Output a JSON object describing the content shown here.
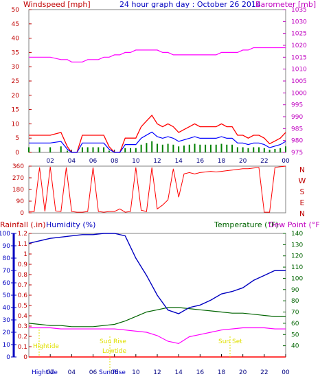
{
  "title": "24 hour graph day : October 26 2014",
  "colors": {
    "wind": "#ff0000",
    "gust": "#ff0000",
    "avg": "#0000ff",
    "low": "#008000",
    "baro": "#ff00ff",
    "dir": "#ff0000",
    "rain": "#ff0000",
    "humid": "#0000c0",
    "temp": "#006400",
    "dew": "#ff00ff",
    "blue_axis": "#0000c0",
    "frame": "#808080",
    "gridline": "#c0c0c0",
    "annot": "#e0e000"
  },
  "labels": {
    "windspeed": "Windspeed [mph]",
    "barometer": "Barometer [mb]",
    "rainfall": "Rainfall (.in)",
    "humidity": "Humidity (%)",
    "temperature": "Temperature (°F)",
    "dewpoint": "Dew Point (°F)",
    "high_tide": "Hightide",
    "sun_rise": "Sun Rise",
    "low_tide": "Lowtide",
    "sun_set": "Sun Set",
    "bottom_hightide": "Hightide",
    "bottom_sunrise": "Sun Rise"
  },
  "chart_data": [
    {
      "type": "line",
      "name": "wind-panel",
      "x_ticks": [
        "02",
        "04",
        "06",
        "08",
        "10",
        "12",
        "14",
        "16",
        "18",
        "20",
        "22",
        "00"
      ],
      "left_ticks": [
        "0",
        "5",
        "10",
        "15",
        "20",
        "25",
        "30",
        "35",
        "40",
        "45",
        "50"
      ],
      "right_ticks": [
        "975",
        "980",
        "985",
        "990",
        "995",
        "1000",
        "1005",
        "1010",
        "1015",
        "1020",
        "1025",
        "1030",
        "1035"
      ],
      "ylim": [
        0,
        50
      ],
      "y2lim": [
        975,
        1035
      ],
      "x": [
        0,
        1,
        2,
        3,
        3.6,
        4,
        4.5,
        5,
        5.5,
        6,
        6.5,
        7,
        7.5,
        8,
        8.5,
        9,
        9.5,
        10,
        10.5,
        11,
        11.5,
        12,
        12.5,
        13,
        13.5,
        14,
        14.5,
        15,
        15.5,
        16,
        16.5,
        17,
        17.5,
        18,
        18.5,
        19,
        19.5,
        20,
        20.5,
        21,
        21.5,
        22,
        22.5,
        23,
        23.5,
        24
      ],
      "series": [
        {
          "name": "Windspeed [mph]",
          "values": [
            6,
            6,
            6,
            7,
            2,
            0,
            0,
            6,
            6,
            6,
            6,
            6,
            2,
            0,
            0,
            5,
            5,
            5,
            9,
            11,
            13,
            10,
            9,
            10,
            9,
            7,
            8,
            9,
            10,
            9,
            9,
            9,
            9,
            10,
            9,
            9,
            6,
            6,
            5,
            6,
            6,
            5,
            3,
            4,
            5,
            7
          ]
        },
        {
          "name": "Barometer [mb]",
          "values": [
            1015,
            1015,
            1015,
            1014,
            1014,
            1013,
            1013,
            1013,
            1014,
            1014,
            1014,
            1015,
            1015,
            1016,
            1016,
            1017,
            1017,
            1018,
            1018,
            1018,
            1018,
            1018,
            1017,
            1017,
            1016,
            1016,
            1016,
            1016,
            1016,
            1016,
            1016,
            1016,
            1016,
            1017,
            1017,
            1017,
            1017,
            1018,
            1018,
            1019,
            1019,
            1019,
            1019,
            1019,
            1019,
            1019
          ]
        }
      ]
    },
    {
      "type": "line",
      "name": "direction-panel",
      "left_ticks": [
        "0",
        "90",
        "180",
        "270",
        "360"
      ],
      "compass": [
        "N",
        "W",
        "S",
        "E",
        "N"
      ],
      "ylim": [
        0,
        360
      ],
      "x": [
        0,
        0.5,
        1,
        1.5,
        2,
        2.5,
        3,
        3.5,
        4,
        4.5,
        5,
        5.5,
        6,
        6.5,
        7,
        7.5,
        8,
        8.5,
        9,
        9.5,
        10,
        10.5,
        11,
        11.5,
        12,
        12.5,
        13,
        13.5,
        14,
        14.5,
        15,
        15.5,
        16,
        16.5,
        17,
        17.5,
        18,
        18.5,
        19,
        19.5,
        20,
        20.5,
        21,
        21.5,
        22,
        22.5,
        23,
        23.5,
        24
      ],
      "series": [
        {
          "name": "Wind direction",
          "values": [
            10,
            10,
            350,
            10,
            355,
            15,
            10,
            350,
            10,
            5,
            5,
            10,
            350,
            10,
            5,
            10,
            10,
            30,
            5,
            10,
            350,
            20,
            10,
            350,
            30,
            60,
            100,
            340,
            120,
            300,
            310,
            300,
            310,
            315,
            320,
            315,
            320,
            325,
            330,
            335,
            340,
            340,
            345,
            350,
            5,
            5,
            350,
            355,
            360
          ]
        }
      ]
    },
    {
      "type": "line",
      "name": "humidity-temperature-panel",
      "rain_ticks": [
        "0",
        "0.1",
        "0.2",
        "0.3",
        "0.4",
        "0.5",
        "0.6",
        "0.7",
        "0.8",
        "0.9",
        "1",
        "1.1",
        "1.2"
      ],
      "humidity_ticks": [
        "0",
        "10",
        "20",
        "30",
        "40",
        "50",
        "60",
        "70",
        "80",
        "90",
        "100"
      ],
      "temp_ticks": [
        "40",
        "50",
        "60",
        "70",
        "80",
        "90",
        "100",
        "110",
        "120",
        "130",
        "140"
      ],
      "rain_ylim": [
        0,
        1.2
      ],
      "humidity_ylim": [
        0,
        100
      ],
      "temp_ylim": [
        30,
        140
      ],
      "x": [
        0,
        1,
        2,
        3,
        4,
        5,
        6,
        7,
        8,
        9,
        10,
        11,
        12,
        13,
        14,
        15,
        16,
        17,
        18,
        19,
        20,
        21,
        22,
        23,
        24
      ],
      "series": [
        {
          "name": "Humidity (%)",
          "values": [
            92,
            94,
            96,
            97,
            98,
            99,
            99,
            100,
            100,
            98,
            80,
            66,
            50,
            38,
            35,
            40,
            42,
            46,
            51,
            53,
            56,
            62,
            66,
            70,
            70
          ]
        },
        {
          "name": "Temperature (°F)",
          "values": [
            60,
            59,
            58,
            58,
            57,
            57,
            57,
            58,
            59,
            62,
            66,
            70,
            72,
            74,
            74,
            73,
            72,
            71,
            70,
            69,
            69,
            68,
            67,
            66,
            66
          ]
        },
        {
          "name": "Dew Point (°F)",
          "values": [
            56,
            56,
            56,
            55,
            55,
            55,
            55,
            55,
            55,
            54,
            53,
            52,
            49,
            44,
            42,
            48,
            50,
            52,
            54,
            55,
            56,
            56,
            56,
            55,
            55
          ]
        },
        {
          "name": "Rainfall (.in)",
          "values": [
            0,
            0,
            0,
            0,
            0,
            0,
            0,
            0,
            0,
            0,
            0,
            0,
            0,
            0,
            0,
            0,
            0,
            0,
            0,
            0,
            0,
            0,
            0,
            0,
            0
          ]
        }
      ]
    }
  ]
}
